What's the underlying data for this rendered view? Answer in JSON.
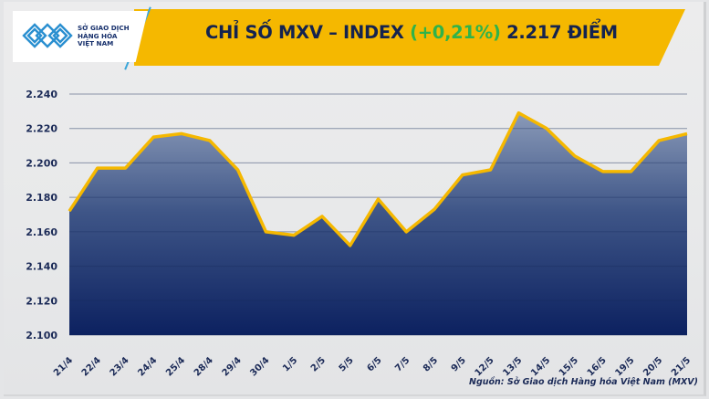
{
  "header": {
    "title_prefix": "CHỈ SỐ MXV – INDEX ",
    "title_change": "(+0,21%)",
    "title_suffix": " 2.217 ĐIỂM",
    "band_color": "#f5b800",
    "title_color": "#14234f",
    "change_color": "#2fb34a"
  },
  "logo": {
    "line1": "SỞ GIAO DỊCH",
    "line2": "HÀNG HÓA",
    "line3": "VIỆT NAM",
    "icon": "mxv-logo-icon"
  },
  "source_note": "Nguồn: Sở Giao dịch Hàng hóa Việt Nam (MXV)",
  "chart_data": {
    "type": "area",
    "title": "CHỈ SỐ MXV – INDEX (+0,21%) 2.217 ĐIỂM",
    "xlabel": "",
    "ylabel": "",
    "ylim": [
      2100,
      2240
    ],
    "yticks": [
      2100,
      2120,
      2140,
      2160,
      2180,
      2200,
      2220,
      2240
    ],
    "ytick_labels": [
      "2.100",
      "2.120",
      "2.140",
      "2.160",
      "2.180",
      "2.200",
      "2.220",
      "2.240"
    ],
    "grid": true,
    "legend": "none",
    "line_color": "#f5b800",
    "fill_top_color": "#8a9ab8",
    "fill_bottom_color": "#0c2160",
    "categories": [
      "21/4",
      "22/4",
      "23/4",
      "24/4",
      "25/4",
      "28/4",
      "29/4",
      "30/4",
      "1/5",
      "2/5",
      "5/5",
      "6/5",
      "7/5",
      "8/5",
      "9/5",
      "12/5",
      "13/5",
      "14/5",
      "15/5",
      "16/5",
      "19/5",
      "20/5",
      "21/5"
    ],
    "series": [
      {
        "name": "MXV-Index",
        "values": [
          2172,
          2197,
          2197,
          2215,
          2217,
          2213,
          2196,
          2160,
          2158,
          2169,
          2152,
          2179,
          2160,
          2173,
          2193,
          2196,
          2229,
          2220,
          2204,
          2195,
          2195,
          2213,
          2217
        ]
      }
    ]
  }
}
